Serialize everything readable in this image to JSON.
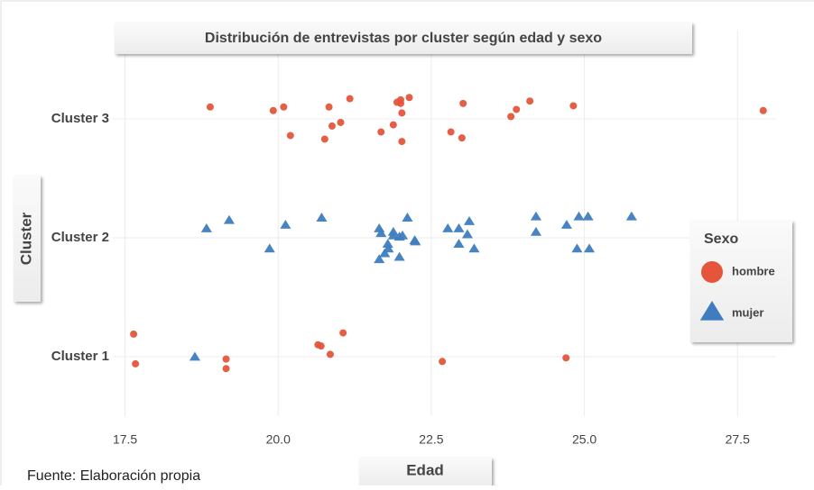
{
  "chart_data": {
    "type": "scatter",
    "title": "Distribución de entrevistas por cluster según edad y sexo",
    "xlabel": "Edad",
    "ylabel": "Cluster",
    "legend_title": "Sexo",
    "legend": "right",
    "source": "Fuente: Elaboración propia",
    "grid": true,
    "xlim": [
      17.3,
      28.13
    ],
    "ylim": [
      0.5,
      3.75
    ],
    "xticks": [
      17.5,
      {
        "value": 20,
        "label": "20.0"
      },
      22.5,
      {
        "value": 25,
        "label": "25.0"
      },
      27.5
    ],
    "yticks": [
      {
        "value": 1,
        "label": "Cluster 1"
      },
      {
        "value": 2,
        "label": "Cluster 2"
      },
      {
        "value": 3,
        "label": "Cluster 3"
      }
    ],
    "series": [
      {
        "name": "hombre",
        "color": "#e4553c",
        "marker": "circle",
        "x": [
          18.89,
          19.92,
          20.09,
          20.2,
          20.76,
          20.83,
          20.88,
          21.02,
          21.17,
          21.68,
          21.88,
          21.94,
          22.0,
          22.0,
          22.02,
          22.02,
          22.14,
          22.82,
          23.0,
          23.02,
          23.8,
          23.89,
          24.11,
          24.82,
          27.92,
          17.64,
          17.67,
          19.15,
          19.15,
          20.65,
          20.7,
          20.85,
          21.06,
          22.68,
          24.7
        ],
        "y": [
          3.1,
          3.07,
          3.1,
          2.86,
          2.83,
          3.1,
          2.94,
          2.97,
          3.17,
          2.89,
          2.95,
          3.14,
          3.13,
          3.16,
          3.05,
          2.81,
          3.18,
          2.89,
          2.84,
          3.13,
          3.02,
          3.08,
          3.15,
          3.11,
          3.07,
          1.19,
          0.94,
          0.98,
          0.9,
          1.1,
          1.09,
          1.02,
          1.2,
          0.96,
          0.99
        ]
      },
      {
        "name": "mujer",
        "color": "#3f7dbf",
        "marker": "triangle",
        "x": [
          18.64,
          18.83,
          19.2,
          19.86,
          20.12,
          20.71,
          21.65,
          21.68,
          21.65,
          21.74,
          21.79,
          21.8,
          21.88,
          21.88,
          21.98,
          22.03,
          21.98,
          22.11,
          22.23,
          22.24,
          22.77,
          22.95,
          22.95,
          23.09,
          23.12,
          23.2,
          24.21,
          24.21,
          24.71,
          24.88,
          24.91,
          25.06,
          25.08,
          25.77
        ],
        "y": [
          1.0,
          2.08,
          2.15,
          1.91,
          2.11,
          2.17,
          2.08,
          2.04,
          1.82,
          1.87,
          1.95,
          1.91,
          2.05,
          2.02,
          2.01,
          2.02,
          1.84,
          2.17,
          1.98,
          1.97,
          2.08,
          1.95,
          2.08,
          2.03,
          2.14,
          1.91,
          2.18,
          2.05,
          2.11,
          1.91,
          2.18,
          2.18,
          1.91,
          2.18
        ]
      }
    ]
  }
}
